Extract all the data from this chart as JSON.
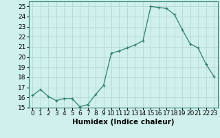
{
  "x": [
    0,
    1,
    2,
    3,
    4,
    5,
    6,
    7,
    8,
    9,
    10,
    11,
    12,
    13,
    14,
    15,
    16,
    17,
    18,
    19,
    20,
    21,
    22,
    23
  ],
  "y": [
    16.2,
    16.8,
    16.1,
    15.7,
    15.9,
    15.9,
    15.1,
    15.3,
    16.3,
    17.2,
    20.4,
    20.6,
    20.9,
    21.2,
    21.6,
    25.0,
    24.9,
    24.8,
    24.2,
    22.7,
    21.3,
    20.9,
    19.3,
    18.1
  ],
  "xlabel": "Humidex (Indice chaleur)",
  "line_color": "#2e7d6e",
  "marker": "+",
  "bg_color": "#cff0ec",
  "grid_color": "#b8dbd7",
  "ylim": [
    15,
    25.5
  ],
  "yticks": [
    15,
    16,
    17,
    18,
    19,
    20,
    21,
    22,
    23,
    24,
    25
  ],
  "xticks": [
    0,
    1,
    2,
    3,
    4,
    5,
    6,
    7,
    8,
    9,
    10,
    11,
    12,
    13,
    14,
    15,
    16,
    17,
    18,
    19,
    20,
    21,
    22,
    23
  ],
  "tick_label_fontsize": 6.5,
  "xlabel_fontsize": 7.5
}
